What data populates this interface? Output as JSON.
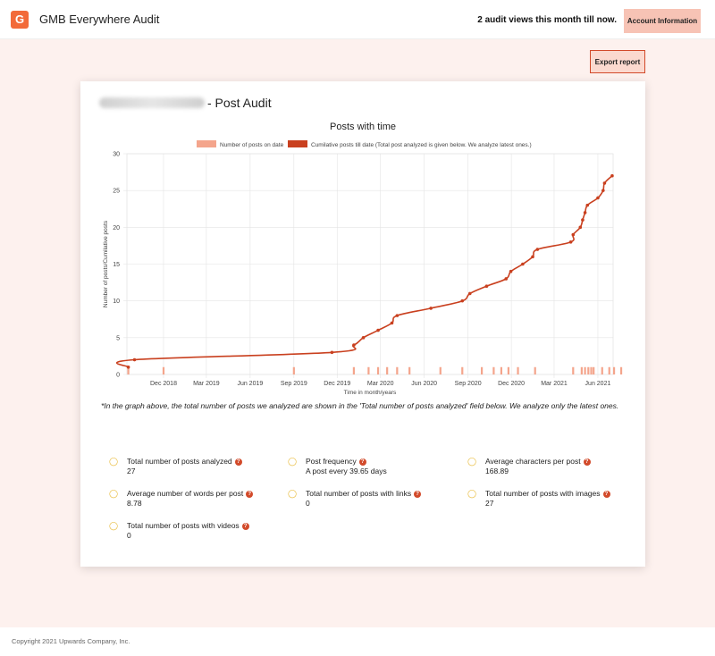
{
  "header": {
    "logo_letter": "G",
    "app_title": "GMB Everywhere Audit",
    "audit_views": "2 audit views this month till now.",
    "account_button": "Account Information"
  },
  "toolbar": {
    "export_label": "Export report"
  },
  "card": {
    "title_suffix": "- Post Audit"
  },
  "chart_data": {
    "type": "line",
    "title": "Posts with time",
    "xlabel": "Time in month/years",
    "ylabel": "Number of posts/Cumilative posts",
    "ylim": [
      0,
      30
    ],
    "y_ticks": [
      0,
      5,
      10,
      15,
      20,
      25,
      30
    ],
    "x_ticks": [
      "Dec 2018",
      "Mar 2019",
      "Jun 2019",
      "Sep 2019",
      "Dec 2019",
      "Mar 2020",
      "Jun 2020",
      "Sep 2020",
      "Dec 2020",
      "Mar 2021",
      "Jun 2021"
    ],
    "grid": true,
    "legend_position": "top",
    "series": [
      {
        "name": "Number of posts on date",
        "kind": "bar",
        "color": "#f4a58c",
        "dates": [
          "2018-09-18",
          "2018-12-01",
          "2019-09-01",
          "2020-01-05",
          "2020-02-05",
          "2020-02-25",
          "2020-03-15",
          "2020-04-05",
          "2020-05-01",
          "2020-07-05",
          "2020-08-20",
          "2020-09-30",
          "2020-10-25",
          "2020-11-10",
          "2020-11-25",
          "2020-12-15",
          "2021-01-20",
          "2021-04-10",
          "2021-04-28",
          "2021-05-05",
          "2021-05-12",
          "2021-05-18",
          "2021-05-23",
          "2021-06-10",
          "2021-06-25",
          "2021-07-05",
          "2021-07-20"
        ],
        "values": [
          1,
          1,
          1,
          1,
          1,
          1,
          1,
          1,
          1,
          1,
          1,
          1,
          1,
          1,
          1,
          1,
          1,
          1,
          1,
          1,
          1,
          1,
          1,
          1,
          1,
          1,
          1
        ]
      },
      {
        "name": "Cumilative posts till date (Total post analyzed is given below. We analyze latest ones.)",
        "kind": "line",
        "color": "#c9401f",
        "dates": [
          "2018-09-18",
          "2018-10-01",
          "2019-11-20",
          "2020-01-05",
          "2020-01-25",
          "2020-02-25",
          "2020-03-25",
          "2020-04-05",
          "2020-06-15",
          "2020-08-20",
          "2020-09-05",
          "2020-10-10",
          "2020-11-20",
          "2020-11-30",
          "2020-12-25",
          "2021-01-15",
          "2021-01-25",
          "2021-04-05",
          "2021-04-10",
          "2021-04-25",
          "2021-04-30",
          "2021-05-05",
          "2021-05-10",
          "2021-06-01",
          "2021-06-12",
          "2021-06-15",
          "2021-07-01"
        ],
        "values": [
          1,
          2,
          3,
          4,
          5,
          6,
          7,
          8,
          9,
          10,
          11,
          12,
          13,
          14,
          15,
          16,
          17,
          18,
          19,
          20,
          21,
          22,
          23,
          24,
          25,
          26,
          27
        ]
      }
    ]
  },
  "graph_note": "*In the graph above, the total number of posts we analyzed are shown in the 'Total number of posts analyzed' field below. We analyze only the latest ones.",
  "stats": [
    {
      "label": "Total number of posts analyzed",
      "value": "27"
    },
    {
      "label": "Post frequency",
      "value": "A post every 39.65 days"
    },
    {
      "label": "Average characters per post",
      "value": "168.89"
    },
    {
      "label": "Average number of words per post",
      "value": "8.78"
    },
    {
      "label": "Total number of posts with links",
      "value": "0"
    },
    {
      "label": "Total number of posts with images",
      "value": "27"
    },
    {
      "label": "Total number of posts with videos",
      "value": "0"
    }
  ],
  "help_glyph": "?",
  "bulb_icon": "lightbulb-icon",
  "footer": {
    "copyright": "Copyright 2021 Upwards Company, Inc."
  },
  "colors": {
    "accent": "#f26b3a",
    "line": "#c9401f",
    "bar": "#f4a58c",
    "page_bg": "#fdf1ee"
  }
}
